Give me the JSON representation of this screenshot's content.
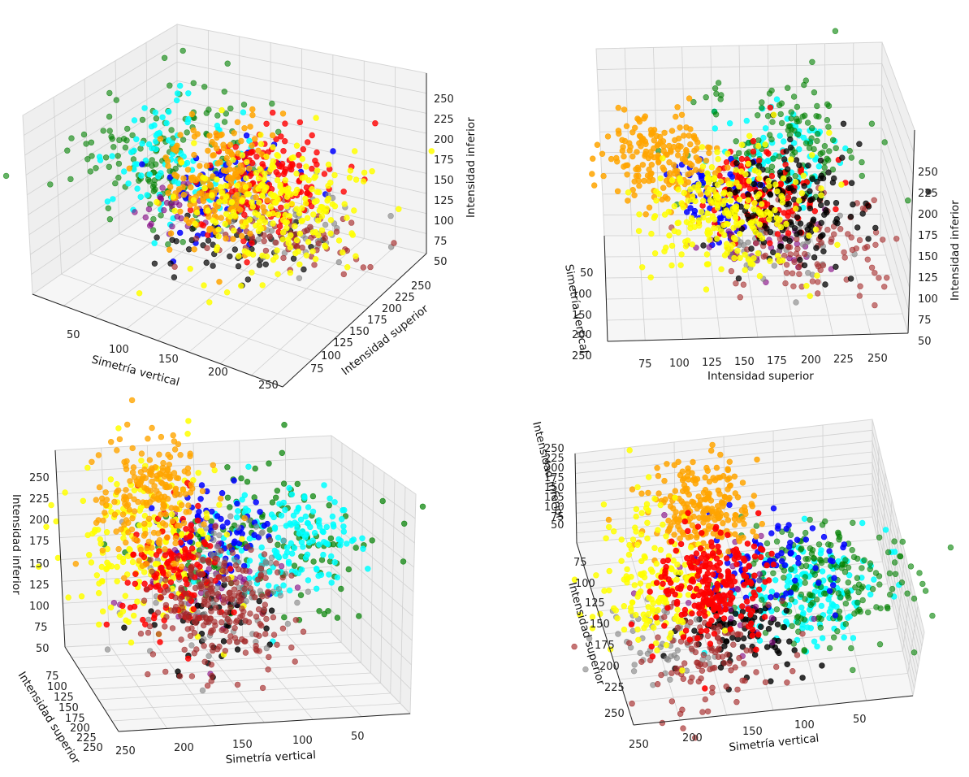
{
  "chart_data": [
    {
      "type": "scatter3d",
      "panel": "top-left",
      "axes": {
        "x": {
          "label": "Simetría vertical",
          "ticks": [
            "50",
            "100",
            "150",
            "200",
            "250"
          ]
        },
        "y": {
          "label": "Intensidad superior",
          "ticks": [
            "75",
            "100",
            "125",
            "150",
            "175",
            "200",
            "225",
            "250"
          ]
        },
        "z": {
          "label": "Intensidad inferior",
          "ticks": [
            "50",
            "75",
            "100",
            "125",
            "150",
            "175",
            "200",
            "225",
            "250"
          ]
        }
      },
      "grid": true
    },
    {
      "type": "scatter3d",
      "panel": "top-right",
      "axes": {
        "x": {
          "label": "Simetría vertical",
          "ticks": [
            "50",
            "100",
            "150",
            "200",
            "250"
          ]
        },
        "y": {
          "label": "Intensidad superior",
          "ticks": [
            "75",
            "100",
            "125",
            "150",
            "175",
            "200",
            "225",
            "250"
          ]
        },
        "z": {
          "label": "Intensidad inferior",
          "ticks": [
            "50",
            "75",
            "100",
            "125",
            "150",
            "175",
            "200",
            "225",
            "250"
          ]
        }
      },
      "grid": true
    },
    {
      "type": "scatter3d",
      "panel": "bottom-left",
      "axes": {
        "x": {
          "label": "Simetría vertical",
          "ticks": [
            "250",
            "200",
            "150",
            "100",
            "50"
          ]
        },
        "y": {
          "label": "Intensidad superior",
          "ticks": [
            "75",
            "100",
            "125",
            "150",
            "175",
            "200",
            "225",
            "250"
          ]
        },
        "z": {
          "label": "Intensidad inferior",
          "ticks": [
            "50",
            "75",
            "100",
            "125",
            "150",
            "175",
            "200",
            "225",
            "250"
          ]
        }
      },
      "grid": true
    },
    {
      "type": "scatter3d",
      "panel": "bottom-right",
      "axes": {
        "x": {
          "label": "Simetría vertical",
          "ticks": [
            "250",
            "200",
            "150",
            "100",
            "50"
          ]
        },
        "y": {
          "label": "Intensidad superior",
          "ticks": [
            "75",
            "100",
            "125",
            "150",
            "175",
            "200",
            "225",
            "250"
          ]
        },
        "z": {
          "label": "Intensidad inferior",
          "ticks": [
            "50",
            "75",
            "100",
            "125",
            "150",
            "175",
            "200",
            "225",
            "250"
          ]
        }
      },
      "grid": true
    }
  ],
  "cluster_colors": [
    "#ffa500",
    "#ffff00",
    "#ff0000",
    "#0000ff",
    "#00ffff",
    "#008000",
    "#000000",
    "#a52a2a",
    "#808080",
    "#800080"
  ]
}
